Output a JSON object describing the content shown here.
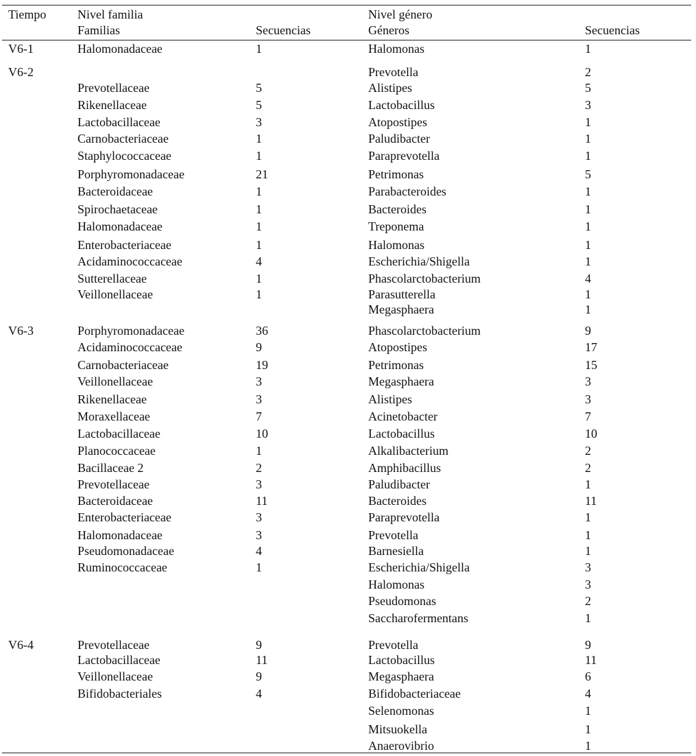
{
  "header": {
    "tiempo": "Tiempo",
    "nivel_familia": "Nivel familia",
    "familias": "Familias",
    "secuencias_familia": "Secuencias",
    "nivel_genero": "Nivel género",
    "generos": "Géneros",
    "secuencias_genero": "Secuencias"
  },
  "groups": [
    {
      "tiempo": "V6-1",
      "familias": [
        {
          "name": "Halomonadaceae",
          "seq": "1"
        }
      ],
      "generos": [
        {
          "name": "Halomonas",
          "seq": "1"
        }
      ]
    },
    {
      "tiempo": "V6-2",
      "familias": [
        {
          "name": "Prevotellaceae",
          "seq": "5"
        },
        {
          "name": "Rikenellaceae",
          "seq": "5"
        },
        {
          "name": "Lactobacillaceae",
          "seq": "3"
        },
        {
          "name": "Carnobacteriaceae",
          "seq": "1"
        },
        {
          "name": "Staphylococcaceae",
          "seq": "1"
        },
        {
          "name": "Porphyromonadaceae",
          "seq": "21"
        },
        {
          "name": "Bacteroidaceae",
          "seq": "1"
        },
        {
          "name": "Spirochaetaceae",
          "seq": "1"
        },
        {
          "name": "Halomonadaceae",
          "seq": "1"
        },
        {
          "name": "Enterobacteriaceae",
          "seq": "1"
        },
        {
          "name": "Acidaminococcaceae",
          "seq": "4"
        },
        {
          "name": "Sutterellaceae",
          "seq": "1"
        },
        {
          "name": "Veillonellaceae",
          "seq": "1"
        }
      ],
      "generos": [
        {
          "name": "Prevotella",
          "seq": "2"
        },
        {
          "name": "Alistipes",
          "seq": "5"
        },
        {
          "name": "Lactobacillus",
          "seq": "3"
        },
        {
          "name": "Atopostipes",
          "seq": "1"
        },
        {
          "name": "Paludibacter",
          "seq": "1"
        },
        {
          "name": "Paraprevotella",
          "seq": "1"
        },
        {
          "name": "Petrimonas",
          "seq": "5"
        },
        {
          "name": "Parabacteroides",
          "seq": "1"
        },
        {
          "name": "Bacteroides",
          "seq": "1"
        },
        {
          "name": "Treponema",
          "seq": "1"
        },
        {
          "name": "Halomonas",
          "seq": "1"
        },
        {
          "name": "Escherichia/Shigella",
          "seq": "1"
        },
        {
          "name": "Phascolarctobacterium",
          "seq": "4"
        },
        {
          "name": "Parasutterella",
          "seq": "1"
        },
        {
          "name": "Megasphaera",
          "seq": "1"
        }
      ]
    },
    {
      "tiempo": "V6-3",
      "familias": [
        {
          "name": "Porphyromonadaceae",
          "seq": "36"
        },
        {
          "name": "Acidaminococcaceae",
          "seq": "9"
        },
        {
          "name": "Carnobacteriaceae",
          "seq": "19"
        },
        {
          "name": "Veillonellaceae",
          "seq": "3"
        },
        {
          "name": "Rikenellaceae",
          "seq": "3"
        },
        {
          "name": "Moraxellaceae",
          "seq": "7"
        },
        {
          "name": "Lactobacillaceae",
          "seq": "10"
        },
        {
          "name": "Planococcaceae",
          "seq": "1"
        },
        {
          "name": "Bacillaceae 2",
          "seq": "2"
        },
        {
          "name": "Prevotellaceae",
          "seq": "3"
        },
        {
          "name": "Bacteroidaceae",
          "seq": "11"
        },
        {
          "name": "Enterobacteriaceae",
          "seq": "3"
        },
        {
          "name": "Halomonadaceae",
          "seq": "3"
        },
        {
          "name": "Pseudomonadaceae",
          "seq": "4"
        },
        {
          "name": "Ruminococcaceae",
          "seq": "1"
        }
      ],
      "generos": [
        {
          "name": "Phascolarctobacterium",
          "seq": "9"
        },
        {
          "name": "Atopostipes",
          "seq": "17"
        },
        {
          "name": "Petrimonas",
          "seq": "15"
        },
        {
          "name": "Megasphaera",
          "seq": "3"
        },
        {
          "name": "Alistipes",
          "seq": "3"
        },
        {
          "name": "Acinetobacter",
          "seq": "7"
        },
        {
          "name": "Lactobacillus",
          "seq": "10"
        },
        {
          "name": "Alkalibacterium",
          "seq": "2"
        },
        {
          "name": "Amphibacillus",
          "seq": "2"
        },
        {
          "name": "Paludibacter",
          "seq": "1"
        },
        {
          "name": "Bacteroides",
          "seq": "11"
        },
        {
          "name": "Paraprevotella",
          "seq": "1"
        },
        {
          "name": "Prevotella",
          "seq": "1"
        },
        {
          "name": "Barnesiella",
          "seq": "1"
        },
        {
          "name": "Escherichia/Shigella",
          "seq": "3"
        },
        {
          "name": "Halomonas",
          "seq": "3"
        },
        {
          "name": "Pseudomonas",
          "seq": "2"
        },
        {
          "name": "Saccharofermentans",
          "seq": "1"
        }
      ]
    },
    {
      "tiempo": "V6-4",
      "familias": [
        {
          "name": "Prevotellaceae",
          "seq": "9"
        },
        {
          "name": "Lactobacillaceae",
          "seq": "11"
        },
        {
          "name": "Veillonellaceae",
          "seq": "9"
        },
        {
          "name": "Bifidobacteriales",
          "seq": "4"
        }
      ],
      "generos": [
        {
          "name": "Prevotella",
          "seq": "9"
        },
        {
          "name": "Lactobacillus",
          "seq": "11"
        },
        {
          "name": "Megasphaera",
          "seq": "6"
        },
        {
          "name": "Bifidobacteriaceae",
          "seq": "4"
        },
        {
          "name": "Selenomonas",
          "seq": "1"
        },
        {
          "name": "Mitsuokella",
          "seq": "1"
        },
        {
          "name": "Anaerovibrio",
          "seq": "1"
        }
      ]
    }
  ]
}
